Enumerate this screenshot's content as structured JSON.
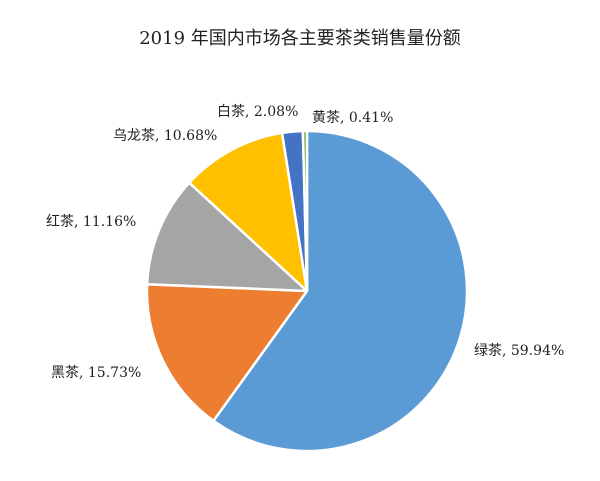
{
  "chart_data": {
    "type": "pie",
    "title": "2019 年国内市场各主要茶类销售量份额",
    "slices": [
      {
        "name": "绿茶",
        "value": 59.94,
        "label": "绿茶, 59.94%",
        "color": "#5B9BD5"
      },
      {
        "name": "黑茶",
        "value": 15.73,
        "label": "黑茶, 15.73%",
        "color": "#ED7D31"
      },
      {
        "name": "红茶",
        "value": 11.16,
        "label": "红茶, 11.16%",
        "color": "#A5A5A5"
      },
      {
        "name": "乌龙茶",
        "value": 10.68,
        "label": "乌龙茶, 10.68%",
        "color": "#FFC000"
      },
      {
        "name": "白茶",
        "value": 2.08,
        "label": "白茶, 2.08%",
        "color": "#4472C4"
      },
      {
        "name": "黄茶",
        "value": 0.41,
        "label": "黄茶, 0.41%",
        "color": "#70AD47"
      }
    ],
    "start": "top",
    "direction": "clockwise",
    "legend": "none"
  }
}
